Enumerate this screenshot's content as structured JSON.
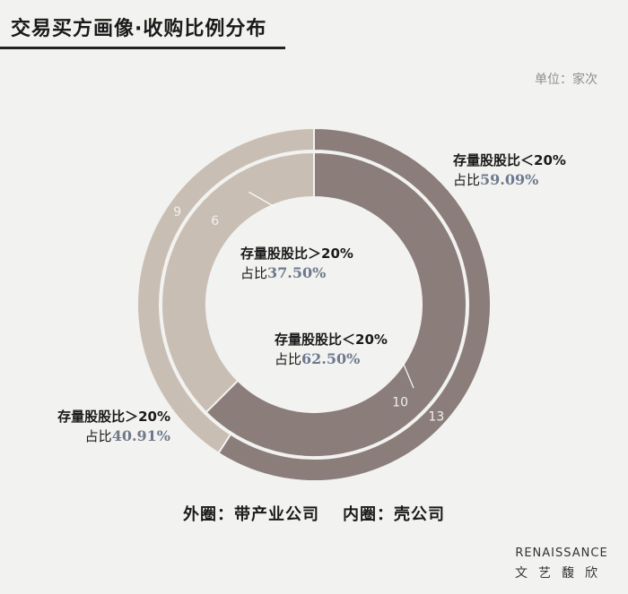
{
  "title": "交易买方画像·收购比例分布",
  "unit": "单位：家次",
  "chart_data": {
    "type": "pie",
    "rings": [
      {
        "name": "外圈：带产业公司",
        "slices": [
          {
            "name": "存量股股比＜20%",
            "value": 13,
            "percent_prefix": "占比",
            "percent": "59.09%",
            "color": "#8a7d7a"
          },
          {
            "name": "存量股股比＞20%",
            "value": 9,
            "percent_prefix": "占比",
            "percent": "40.91%",
            "color": "#c9beb3"
          }
        ]
      },
      {
        "name": "内圈：壳公司",
        "slices": [
          {
            "name": "存量股股比＜20%",
            "value": 10,
            "percent_prefix": "占比",
            "percent": "62.50%",
            "color": "#8a7d7a"
          },
          {
            "name": "存量股股比＞20%",
            "value": 6,
            "percent_prefix": "占比",
            "percent": "37.50%",
            "color": "#c9beb3"
          }
        ]
      }
    ]
  },
  "footer": {
    "outer": "外圈：带产业公司",
    "inner": "内圈：壳公司"
  },
  "brand": {
    "en": "RENAISSANCE",
    "cn": "文艺馥欣"
  }
}
